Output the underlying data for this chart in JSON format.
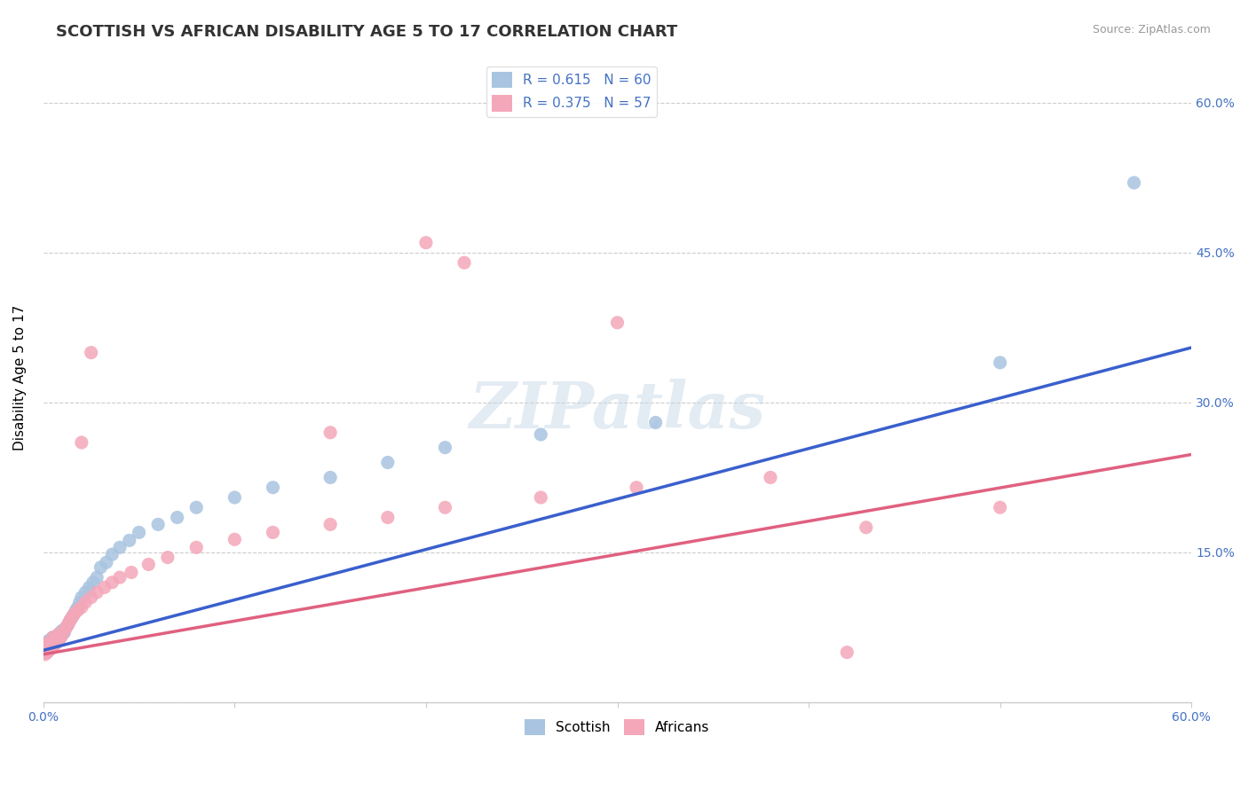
{
  "title": "SCOTTISH VS AFRICAN DISABILITY AGE 5 TO 17 CORRELATION CHART",
  "source": "Source: ZipAtlas.com",
  "ylabel": "Disability Age 5 to 17",
  "xlim": [
    0.0,
    0.6
  ],
  "ylim": [
    0.0,
    0.65
  ],
  "scottish_color": "#a8c4e0",
  "african_color": "#f4a7b9",
  "scottish_line_color": "#3a5fcd",
  "african_line_color": "#e06080",
  "background_color": "#ffffff",
  "grid_color": "#cccccc",
  "legend_text_color": "#4472c4",
  "R_scottish": 0.615,
  "N_scottish": 60,
  "R_african": 0.375,
  "N_african": 57,
  "scottish_line_x0": 0.0,
  "scottish_line_y0": 0.052,
  "scottish_line_x1": 0.6,
  "scottish_line_y1": 0.355,
  "african_line_x0": 0.0,
  "african_line_y0": 0.048,
  "african_line_x1": 0.6,
  "african_line_y1": 0.248,
  "scottish_x": [
    0.001,
    0.001,
    0.001,
    0.001,
    0.002,
    0.002,
    0.002,
    0.002,
    0.003,
    0.003,
    0.003,
    0.003,
    0.004,
    0.004,
    0.004,
    0.005,
    0.005,
    0.005,
    0.006,
    0.006,
    0.007,
    0.007,
    0.008,
    0.008,
    0.009,
    0.009,
    0.01,
    0.01,
    0.011,
    0.012,
    0.013,
    0.014,
    0.015,
    0.016,
    0.017,
    0.018,
    0.019,
    0.02,
    0.022,
    0.024,
    0.026,
    0.028,
    0.03,
    0.033,
    0.036,
    0.04,
    0.045,
    0.05,
    0.06,
    0.07,
    0.08,
    0.1,
    0.12,
    0.15,
    0.18,
    0.21,
    0.26,
    0.32,
    0.5,
    0.57
  ],
  "scottish_y": [
    0.05,
    0.052,
    0.055,
    0.058,
    0.05,
    0.053,
    0.056,
    0.06,
    0.052,
    0.055,
    0.058,
    0.062,
    0.054,
    0.058,
    0.062,
    0.056,
    0.06,
    0.065,
    0.058,
    0.062,
    0.06,
    0.065,
    0.062,
    0.068,
    0.065,
    0.07,
    0.068,
    0.072,
    0.07,
    0.075,
    0.078,
    0.082,
    0.085,
    0.088,
    0.092,
    0.095,
    0.1,
    0.105,
    0.11,
    0.115,
    0.12,
    0.125,
    0.135,
    0.14,
    0.148,
    0.155,
    0.162,
    0.17,
    0.178,
    0.185,
    0.195,
    0.205,
    0.215,
    0.225,
    0.24,
    0.255,
    0.268,
    0.28,
    0.34,
    0.52
  ],
  "african_x": [
    0.001,
    0.001,
    0.001,
    0.002,
    0.002,
    0.002,
    0.003,
    0.003,
    0.003,
    0.004,
    0.004,
    0.005,
    0.005,
    0.005,
    0.006,
    0.006,
    0.007,
    0.007,
    0.008,
    0.008,
    0.009,
    0.01,
    0.011,
    0.012,
    0.013,
    0.014,
    0.015,
    0.016,
    0.018,
    0.02,
    0.022,
    0.025,
    0.028,
    0.032,
    0.036,
    0.04,
    0.046,
    0.055,
    0.065,
    0.08,
    0.1,
    0.12,
    0.15,
    0.18,
    0.21,
    0.26,
    0.31,
    0.38,
    0.43,
    0.5,
    0.02,
    0.025,
    0.15,
    0.2,
    0.22,
    0.3,
    0.42
  ],
  "african_y": [
    0.048,
    0.052,
    0.055,
    0.05,
    0.053,
    0.058,
    0.052,
    0.056,
    0.06,
    0.055,
    0.058,
    0.055,
    0.06,
    0.065,
    0.058,
    0.062,
    0.06,
    0.065,
    0.062,
    0.068,
    0.065,
    0.068,
    0.072,
    0.075,
    0.078,
    0.082,
    0.085,
    0.088,
    0.092,
    0.095,
    0.1,
    0.105,
    0.11,
    0.115,
    0.12,
    0.125,
    0.13,
    0.138,
    0.145,
    0.155,
    0.163,
    0.17,
    0.178,
    0.185,
    0.195,
    0.205,
    0.215,
    0.225,
    0.175,
    0.195,
    0.26,
    0.35,
    0.27,
    0.46,
    0.44,
    0.38,
    0.05
  ],
  "watermark": "ZIPatlas",
  "title_fontsize": 13,
  "axis_label_fontsize": 11,
  "tick_fontsize": 10,
  "legend_fontsize": 11
}
